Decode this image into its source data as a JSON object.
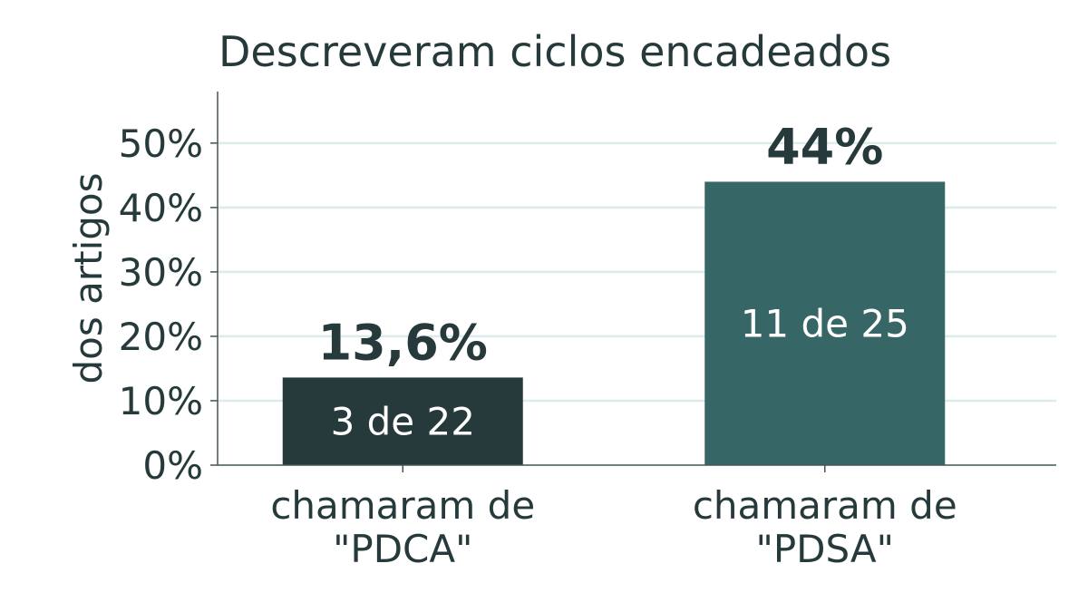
{
  "chart_data": {
    "type": "bar",
    "title": "Descreveram ciclos encadeados",
    "xlabel": "",
    "ylabel": "dos artigos",
    "ylim": [
      0,
      58
    ],
    "yticks": [
      0,
      10,
      20,
      30,
      40,
      50
    ],
    "ytick_labels": [
      "0%",
      "10%",
      "20%",
      "30%",
      "40%",
      "50%"
    ],
    "grid": "horizontal",
    "categories": [
      [
        "chamaram de",
        "\"PDCA\""
      ],
      [
        "chamaram de",
        "\"PDSA\""
      ]
    ],
    "values": [
      13.6,
      44
    ],
    "value_labels": [
      "13,6%",
      "44%"
    ],
    "inner_labels": [
      "3 de 22",
      "11 de 25"
    ],
    "colors": [
      "#263a3c",
      "#366666"
    ]
  }
}
